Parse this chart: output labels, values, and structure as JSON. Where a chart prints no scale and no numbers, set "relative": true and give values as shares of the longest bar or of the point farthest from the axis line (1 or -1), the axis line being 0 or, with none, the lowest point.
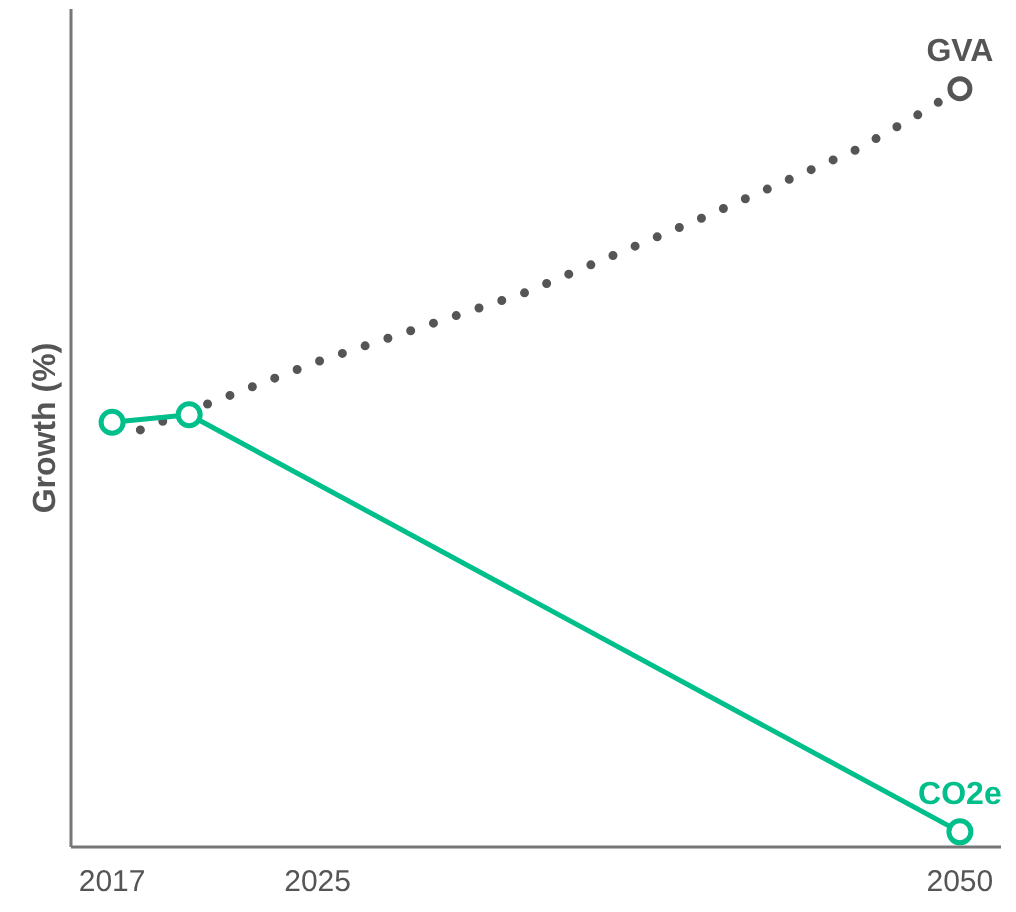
{
  "chart_data": {
    "type": "line",
    "relative": true,
    "ylabel": "Growth (%)",
    "xlim": [
      2015.4,
      2051.6
    ],
    "xticks": [
      2017,
      2025,
      2050
    ],
    "grid": false,
    "legend": false,
    "series": [
      {
        "name": "GVA",
        "color": "#555555",
        "line_style": "dotted",
        "marker": "none",
        "x": [
          2018.1,
          2025,
          2033,
          2040,
          2046,
          2048.6,
          2050
        ],
        "values": [
          0.55,
          0.64,
          0.73,
          0.83,
          0.92,
          0.97,
          1
        ]
      },
      {
        "color": "#555555",
        "type": "scatter",
        "marker": "circle",
        "x": [
          2050
        ],
        "values": [
          1
        ]
      },
      {
        "name": "CO2e",
        "color": "#00bf8a",
        "line_style": "solid",
        "marker": "circle",
        "x": [
          2017,
          2020,
          2050
        ],
        "values": [
          0.56,
          0.57,
          0.02
        ]
      }
    ]
  }
}
